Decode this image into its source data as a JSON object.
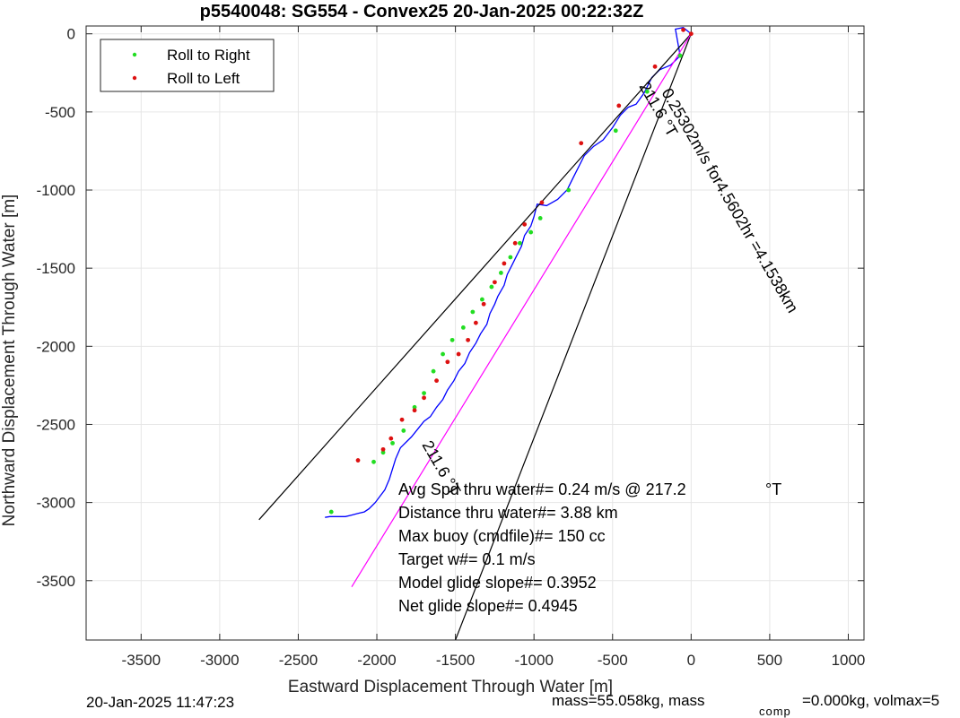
{
  "chart_data": {
    "type": "line",
    "title": "p5540048: SG554 - Convex25 20-Jan-2025 00:22:32Z",
    "xlabel": "Eastward Displacement Through Water [m]",
    "ylabel": "Northward Displacement Through Water [m]",
    "xlim": [
      -3850,
      1100
    ],
    "ylim": [
      -3880,
      50
    ],
    "xticks": [
      -3500,
      -3000,
      -2500,
      -2000,
      -1500,
      -1000,
      -500,
      0,
      500,
      1000
    ],
    "yticks": [
      0,
      -500,
      -1000,
      -1500,
      -2000,
      -2500,
      -3000,
      -3500
    ],
    "grid": true,
    "legend": {
      "position": "top-left",
      "entries": [
        {
          "label": "Roll to Right",
          "color": "#22dd22"
        },
        {
          "label": "Roll to Left",
          "color": "#dd1111"
        }
      ]
    },
    "series": [
      {
        "kind": "track",
        "color": "#0000ff",
        "x": [
          0,
          -50,
          -100,
          -70,
          -130,
          -200,
          -250,
          -300,
          -350,
          -400,
          -450,
          -500,
          -560,
          -620,
          -680,
          -740,
          -790,
          -850,
          -920,
          -980,
          -1000,
          -1020,
          -1060,
          -1080,
          -1110,
          -1140,
          -1170,
          -1190,
          -1230,
          -1250,
          -1280,
          -1300,
          -1340,
          -1370,
          -1410,
          -1440,
          -1480,
          -1510,
          -1550,
          -1580,
          -1620,
          -1660,
          -1700,
          -1740,
          -1780,
          -1810,
          -1850,
          -1880,
          -1920,
          -1950,
          -1980,
          -2010,
          -2050,
          -2080,
          -2120,
          -2160,
          -2200,
          -2250,
          -2300,
          -2330
        ],
        "y": [
          0,
          40,
          30,
          -140,
          -200,
          -230,
          -280,
          -380,
          -450,
          -470,
          -520,
          -600,
          -680,
          -720,
          -780,
          -900,
          -1000,
          -1060,
          -1100,
          -1090,
          -1170,
          -1230,
          -1290,
          -1360,
          -1420,
          -1480,
          -1540,
          -1610,
          -1680,
          -1730,
          -1790,
          -1860,
          -1920,
          -1980,
          -2040,
          -2110,
          -2160,
          -2220,
          -2280,
          -2340,
          -2390,
          -2450,
          -2480,
          -2530,
          -2580,
          -2610,
          -2650,
          -2720,
          -2850,
          -2920,
          -2960,
          -3000,
          -3040,
          -3060,
          -3070,
          -3080,
          -3090,
          -3090,
          -3090,
          -3095
        ]
      },
      {
        "kind": "bearing-line",
        "color": "#000000",
        "x": [
          0,
          -2750
        ],
        "y": [
          0,
          -3110
        ]
      },
      {
        "kind": "bearing-line",
        "color": "#000000",
        "x": [
          0,
          -1500
        ],
        "y": [
          0,
          -3880
        ]
      },
      {
        "kind": "mean-line",
        "color": "#ff00ff",
        "x": [
          0,
          -2160
        ],
        "y": [
          0,
          -3540
        ]
      }
    ],
    "roll_right_points": {
      "color": "#22dd22",
      "x": [
        -70,
        -280,
        -480,
        -780,
        -960,
        -1020,
        -1090,
        -1150,
        -1210,
        -1270,
        -1330,
        -1390,
        -1450,
        -1520,
        -1580,
        -1640,
        -1700,
        -1760,
        -1830,
        -1900,
        -1960,
        -2020,
        -2290
      ],
      "y": [
        -140,
        -370,
        -620,
        -1000,
        -1180,
        -1270,
        -1340,
        -1430,
        -1530,
        -1620,
        -1700,
        -1780,
        -1880,
        -1960,
        -2050,
        -2160,
        -2300,
        -2390,
        -2540,
        -2620,
        -2680,
        -2740,
        -3060
      ]
    },
    "roll_left_points": {
      "color": "#dd1111",
      "x": [
        -50,
        0,
        -230,
        -460,
        -700,
        -950,
        -1060,
        -1120,
        -1190,
        -1250,
        -1320,
        -1370,
        -1420,
        -1480,
        -1550,
        -1620,
        -1700,
        -1760,
        -1840,
        -1910,
        -1960,
        -2120
      ],
      "y": [
        25,
        0,
        -210,
        -460,
        -700,
        -1080,
        -1220,
        -1340,
        -1470,
        -1590,
        -1730,
        -1850,
        -1960,
        -2050,
        -2100,
        -2220,
        -2330,
        -2410,
        -2470,
        -2590,
        -2660,
        -2730
      ]
    },
    "annotations": [
      {
        "text": "211.6 °T",
        "note": "rotated along upper bearing line"
      },
      {
        "text": "0.25302m/s for4.5602hr =4.1538km",
        "note": "rotated along magenta line"
      },
      {
        "text": "211.6 °T",
        "note": "rotated near lower left"
      }
    ],
    "stats": [
      "Avg Spd thru water#=  0.24 m/s @ 217.2",
      "Distance thru water#=  3.88 km",
      "Max buoy (cmdfile)#= 150 cc",
      "Target w#= 0.1 m/s",
      "Model glide slope#= 0.3952",
      "Net glide slope#= 0.4945"
    ],
    "stats_unit": "°T"
  },
  "footer": {
    "timestamp": "20-Jan-2025 11:47:23",
    "mass_prefix": "mass=55.058kg, mass",
    "mass_sub": "comp",
    "mass_suffix": "=0.000kg, volmax=5"
  }
}
